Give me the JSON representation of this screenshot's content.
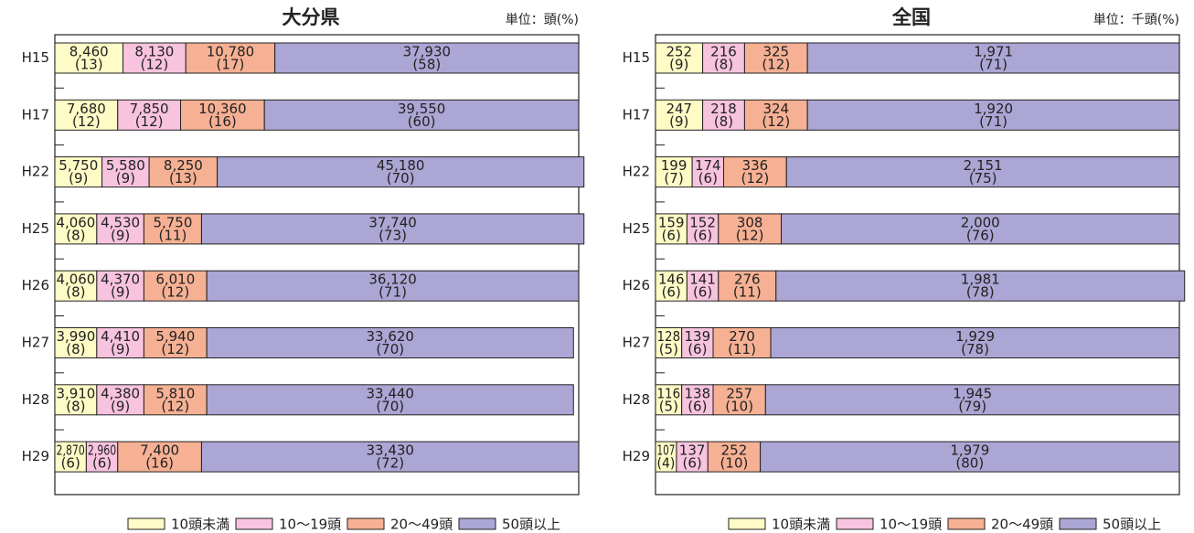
{
  "chart_data": [
    {
      "type": "bar",
      "title": "大分県",
      "unit": "単位：頭(%)",
      "categories": [
        "H15",
        "H17",
        "H22",
        "H25",
        "H26",
        "H27",
        "H28",
        "H29"
      ],
      "xlim": [
        0,
        100
      ],
      "series": [
        {
          "name": "10頭未満",
          "color": "#fffbc6",
          "values": [
            13,
            12,
            9,
            8,
            8,
            8,
            8,
            6
          ],
          "value_labels": [
            "(13)",
            "(12)",
            "(9)",
            "(8)",
            "(8)",
            "(8)",
            "(8)",
            "(6)"
          ],
          "counts": [
            8460,
            7680,
            5750,
            4060,
            4060,
            3990,
            3910,
            2870
          ],
          "count_labels": [
            "8,460",
            "7,680",
            "5,750",
            "4,060",
            "4,060",
            "3,990",
            "3,910",
            "2,870"
          ]
        },
        {
          "name": "10〜19頭",
          "color": "#f7c3de",
          "values": [
            12,
            12,
            9,
            9,
            9,
            9,
            9,
            6
          ],
          "value_labels": [
            "(12)",
            "(12)",
            "(9)",
            "(9)",
            "(9)",
            "(9)",
            "(9)",
            "(6)"
          ],
          "counts": [
            8130,
            7850,
            5580,
            4530,
            4370,
            4410,
            4380,
            2960
          ],
          "count_labels": [
            "8,130",
            "7,850",
            "5,580",
            "4,530",
            "4,370",
            "4,410",
            "4,380",
            "2,960"
          ]
        },
        {
          "name": "20〜49頭",
          "color": "#f6b093",
          "values": [
            17,
            16,
            13,
            11,
            12,
            12,
            12,
            16
          ],
          "value_labels": [
            "(17)",
            "(16)",
            "(13)",
            "(11)",
            "(12)",
            "(12)",
            "(12)",
            "(16)"
          ],
          "counts": [
            10780,
            10360,
            8250,
            5750,
            6010,
            5940,
            5810,
            7400
          ],
          "count_labels": [
            "10,780",
            "10,360",
            "8,250",
            "5,750",
            "6,010",
            "5,940",
            "5,810",
            "7,400"
          ]
        },
        {
          "name": "50頭以上",
          "color": "#aba6d4",
          "values": [
            58,
            60,
            70,
            73,
            71,
            70,
            70,
            72
          ],
          "value_labels": [
            "(58)",
            "(60)",
            "(70)",
            "(73)",
            "(71)",
            "(70)",
            "(70)",
            "(72)"
          ],
          "counts": [
            37930,
            39550,
            45180,
            37740,
            36120,
            33620,
            33440,
            33430
          ],
          "count_labels": [
            "37,930",
            "39,550",
            "45,180",
            "37,740",
            "36,120",
            "33,620",
            "33,440",
            "33,430"
          ]
        }
      ]
    },
    {
      "type": "bar",
      "title": "全国",
      "unit": "単位：千頭(%)",
      "categories": [
        "H15",
        "H17",
        "H22",
        "H25",
        "H26",
        "H27",
        "H28",
        "H29"
      ],
      "xlim": [
        0,
        100
      ],
      "series": [
        {
          "name": "10頭未満",
          "color": "#fffbc6",
          "values": [
            9,
            9,
            7,
            6,
            6,
            5,
            5,
            4
          ],
          "value_labels": [
            "(9)",
            "(9)",
            "(7)",
            "(6)",
            "(6)",
            "(5)",
            "(5)",
            "(4)"
          ],
          "counts": [
            252,
            247,
            199,
            159,
            146,
            128,
            116,
            107
          ]
        },
        {
          "name": "10〜19頭",
          "color": "#f7c3de",
          "values": [
            8,
            8,
            6,
            6,
            6,
            6,
            6,
            6
          ],
          "value_labels": [
            "(8)",
            "(8)",
            "(6)",
            "(6)",
            "(6)",
            "(6)",
            "(6)",
            "(6)"
          ],
          "counts": [
            216,
            218,
            174,
            152,
            141,
            139,
            138,
            137
          ]
        },
        {
          "name": "20〜49頭",
          "color": "#f6b093",
          "values": [
            12,
            12,
            12,
            12,
            11,
            11,
            10,
            10
          ],
          "value_labels": [
            "(12)",
            "(12)",
            "(12)",
            "(12)",
            "(11)",
            "(11)",
            "(10)",
            "(10)"
          ],
          "counts": [
            325,
            324,
            336,
            308,
            276,
            270,
            257,
            252
          ]
        },
        {
          "name": "50頭以上",
          "color": "#aba6d4",
          "values": [
            71,
            71,
            75,
            76,
            78,
            78,
            79,
            80
          ],
          "value_labels": [
            "(71)",
            "(71)",
            "(75)",
            "(76)",
            "(78)",
            "(78)",
            "(79)",
            "(80)"
          ],
          "counts": [
            1971,
            1920,
            2151,
            2000,
            1981,
            1929,
            1945,
            1979
          ],
          "count_labels": [
            "1,971",
            "1,920",
            "2,151",
            "2,000",
            "1,981",
            "1,929",
            "1,945",
            "1,979"
          ]
        }
      ]
    }
  ]
}
